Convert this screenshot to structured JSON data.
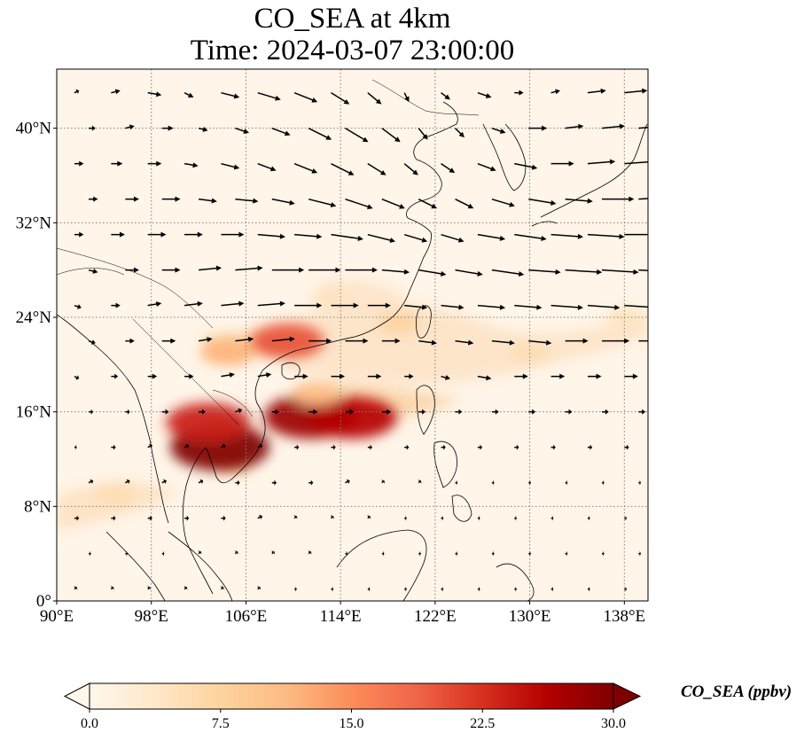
{
  "title": {
    "line1": "CO_SEA at 4km",
    "line2": "Time: 2024-03-07 23:00:00"
  },
  "axes": {
    "lon_ticks": [
      "90°E",
      "98°E",
      "106°E",
      "114°E",
      "122°E",
      "130°E",
      "138°E"
    ],
    "lat_ticks": [
      "0°",
      "8°N",
      "16°N",
      "24°N",
      "32°N",
      "40°N"
    ],
    "lon_range": [
      90,
      140
    ],
    "lat_range": [
      0,
      45
    ],
    "grid": "dotted"
  },
  "colorbar": {
    "label": "CO_SEA (ppbv)",
    "ticks": [
      "0.0",
      "7.5",
      "15.0",
      "22.5",
      "30.0"
    ],
    "range": [
      0,
      30
    ],
    "extend": "both",
    "colormap": "OrRd",
    "colors": [
      "#fff7ec",
      "#fee8c8",
      "#fdd49e",
      "#fdbb84",
      "#fc8d59",
      "#ef6548",
      "#d7301f",
      "#b30000",
      "#7f0000"
    ]
  },
  "colors": {
    "background_field": "#fff5e8",
    "coastline": "#000000",
    "gridline": "#808080"
  },
  "chart_data": {
    "type": "heatmap",
    "field": "CO_SEA concentration",
    "hotspots": [
      {
        "lon": 111.5,
        "lat": 15.6,
        "value": 28
      },
      {
        "lon": 115,
        "lat": 15.5,
        "value": 26
      },
      {
        "lon": 103.8,
        "lat": 13.0,
        "value": 30
      },
      {
        "lon": 102.8,
        "lat": 15.1,
        "value": 24
      },
      {
        "lon": 109.5,
        "lat": 22.0,
        "value": 20
      },
      {
        "lon": 104.5,
        "lat": 21.0,
        "value": 12
      },
      {
        "lon": 119,
        "lat": 23.5,
        "value": 8
      },
      {
        "lon": 112,
        "lat": 17.5,
        "value": 10
      },
      {
        "lon": 113,
        "lat": 25.5,
        "value": 5
      },
      {
        "lon": 130,
        "lat": 21.0,
        "value": 6
      },
      {
        "lon": 138,
        "lat": 24.0,
        "value": 5
      },
      {
        "lon": 95,
        "lat": 9.0,
        "value": 6
      }
    ],
    "vector_rows": [
      {
        "lat": 43,
        "u": [
          2,
          4,
          6,
          4,
          8,
          10,
          10,
          8,
          6,
          2,
          4,
          6,
          4,
          4,
          8,
          10
        ]
      },
      {
        "lat": 40,
        "u": [
          3,
          4,
          5,
          4,
          6,
          8,
          10,
          10,
          8,
          4,
          4,
          6,
          8,
          8,
          10,
          12
        ]
      },
      {
        "lat": 37,
        "u": [
          4,
          5,
          6,
          6,
          8,
          8,
          10,
          10,
          8,
          6,
          6,
          8,
          10,
          10,
          12,
          14
        ]
      },
      {
        "lat": 34,
        "u": [
          4,
          6,
          8,
          8,
          10,
          10,
          12,
          12,
          10,
          8,
          8,
          10,
          12,
          12,
          14,
          16
        ]
      },
      {
        "lat": 31,
        "u": [
          4,
          6,
          8,
          8,
          10,
          12,
          12,
          14,
          12,
          10,
          10,
          12,
          14,
          14,
          16,
          18
        ]
      },
      {
        "lat": 28,
        "u": [
          4,
          6,
          8,
          10,
          12,
          14,
          14,
          14,
          12,
          12,
          12,
          14,
          14,
          16,
          16,
          18
        ]
      },
      {
        "lat": 25,
        "u": [
          3,
          4,
          6,
          8,
          10,
          12,
          12,
          12,
          10,
          10,
          10,
          12,
          12,
          14,
          14,
          16
        ]
      },
      {
        "lat": 22,
        "u": [
          3,
          4,
          6,
          6,
          8,
          10,
          10,
          10,
          8,
          8,
          8,
          10,
          10,
          10,
          12,
          12
        ]
      },
      {
        "lat": 19,
        "u": [
          2,
          3,
          4,
          4,
          6,
          6,
          6,
          6,
          6,
          4,
          4,
          6,
          6,
          6,
          6,
          6
        ]
      },
      {
        "lat": 16,
        "u": [
          2,
          2,
          3,
          3,
          3,
          3,
          4,
          4,
          4,
          3,
          3,
          3,
          3,
          3,
          3,
          3
        ]
      },
      {
        "lat": 13,
        "u": [
          1,
          2,
          2,
          2,
          2,
          2,
          2,
          2,
          2,
          2,
          2,
          2,
          2,
          2,
          2,
          2
        ]
      },
      {
        "lat": 10,
        "u": [
          2,
          2,
          2,
          2,
          2,
          2,
          2,
          2,
          1,
          1,
          1,
          1,
          1,
          1,
          1,
          1
        ]
      },
      {
        "lat": 7,
        "u": [
          2,
          2,
          2,
          2,
          2,
          2,
          1,
          1,
          1,
          1,
          1,
          1,
          1,
          1,
          1,
          1
        ]
      },
      {
        "lat": 4,
        "u": [
          1,
          1,
          1,
          1,
          1,
          1,
          1,
          1,
          1,
          1,
          1,
          1,
          1,
          1,
          1,
          1
        ]
      },
      {
        "lat": 1,
        "u": [
          1,
          1,
          1,
          1,
          1,
          1,
          1,
          1,
          1,
          1,
          1,
          1,
          1,
          1,
          1,
          1
        ]
      }
    ],
    "vector_v": [
      {
        "lat": 43,
        "v": [
          1,
          1,
          -1,
          -2,
          -2,
          -3,
          -4,
          -5,
          -5,
          -4,
          -3,
          -2,
          0,
          1,
          1,
          1
        ]
      },
      {
        "lat": 40,
        "v": [
          0,
          1,
          0,
          -1,
          -2,
          -3,
          -5,
          -6,
          -6,
          -5,
          -4,
          -2,
          0,
          1,
          1,
          1
        ]
      },
      {
        "lat": 37,
        "v": [
          0,
          0,
          0,
          -1,
          -2,
          -3,
          -4,
          -5,
          -5,
          -5,
          -4,
          -3,
          -2,
          0,
          1,
          1
        ]
      },
      {
        "lat": 34,
        "v": [
          0,
          0,
          0,
          -1,
          -1,
          -2,
          -3,
          -4,
          -4,
          -4,
          -4,
          -3,
          -2,
          -1,
          0,
          1
        ]
      },
      {
        "lat": 31,
        "v": [
          0,
          0,
          0,
          0,
          0,
          -1,
          -1,
          -2,
          -3,
          -3,
          -3,
          -2,
          -2,
          -1,
          -1,
          0
        ]
      },
      {
        "lat": 28,
        "v": [
          -1,
          0,
          0,
          1,
          1,
          0,
          0,
          0,
          -1,
          -2,
          -2,
          -2,
          -1,
          -1,
          -1,
          -1
        ]
      },
      {
        "lat": 25,
        "v": [
          -1,
          0,
          1,
          1,
          1,
          1,
          0,
          0,
          0,
          -1,
          -1,
          -1,
          -1,
          -1,
          -1,
          -1
        ]
      },
      {
        "lat": 22,
        "v": [
          -1,
          0,
          0,
          1,
          1,
          1,
          0,
          0,
          0,
          -1,
          -1,
          -1,
          -1,
          0,
          0,
          0
        ]
      },
      {
        "lat": 19,
        "v": [
          -1,
          0,
          0,
          0,
          1,
          1,
          0,
          0,
          0,
          0,
          -1,
          -1,
          0,
          0,
          0,
          0
        ]
      },
      {
        "lat": 16,
        "v": [
          0,
          0,
          0,
          0,
          1,
          0,
          0,
          0,
          0,
          0,
          0,
          0,
          0,
          0,
          0,
          0
        ]
      },
      {
        "lat": 13,
        "v": [
          0,
          0,
          1,
          1,
          1,
          1,
          0,
          0,
          0,
          0,
          0,
          0,
          0,
          0,
          0,
          0
        ]
      },
      {
        "lat": 10,
        "v": [
          1,
          1,
          1,
          1,
          0,
          0,
          0,
          1,
          1,
          1,
          0,
          0,
          0,
          0,
          0,
          0
        ]
      },
      {
        "lat": 7,
        "v": [
          0,
          0,
          0,
          0,
          0,
          1,
          1,
          1,
          1,
          0,
          0,
          0,
          0,
          0,
          0,
          0
        ]
      },
      {
        "lat": 4,
        "v": [
          0,
          0,
          0,
          1,
          1,
          1,
          1,
          0,
          0,
          0,
          0,
          0,
          0,
          0,
          0,
          0
        ]
      },
      {
        "lat": 1,
        "v": [
          1,
          1,
          1,
          1,
          1,
          1,
          0,
          0,
          0,
          0,
          0,
          0,
          0,
          0,
          0,
          0
        ]
      }
    ]
  }
}
